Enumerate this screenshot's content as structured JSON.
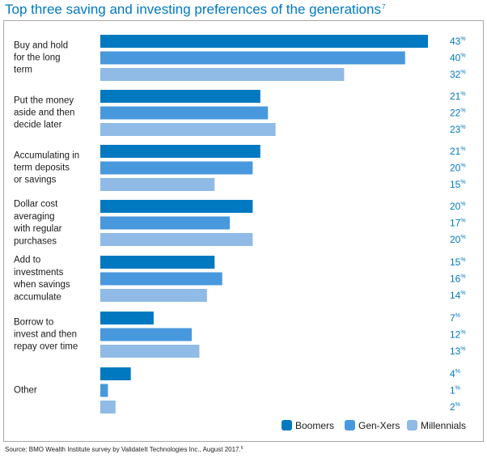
{
  "title": "Top three saving and investing preferences of the generations",
  "title_note": "7",
  "source": "Source: BMO Wealth Institute survey by ValidateIt Technologies Inc., August 2017.",
  "source_note": "6",
  "value_suffix": "%",
  "colors": {
    "Boomers": "#0079c1",
    "Gen-Xers": "#4898dd",
    "Millennials": "#8fbbe6"
  },
  "chart_data": {
    "type": "bar",
    "orientation": "horizontal",
    "categories": [
      [
        "Buy and hold",
        "for the long",
        "term"
      ],
      [
        "Put the money",
        "aside and then",
        "decide later"
      ],
      [
        "Accumulating in",
        "term deposits",
        "or savings"
      ],
      [
        "Dollar cost",
        "averaging",
        "with regular",
        "purchases"
      ],
      [
        "Add to",
        "investments",
        "when savings",
        "accumulate"
      ],
      [
        "Borrow to",
        "invest and then",
        "repay over time"
      ],
      [
        "Other"
      ]
    ],
    "series": [
      {
        "name": "Boomers",
        "values": [
          43,
          21,
          21,
          20,
          15,
          7,
          4
        ]
      },
      {
        "name": "Gen-Xers",
        "values": [
          40,
          22,
          20,
          17,
          16,
          12,
          1
        ]
      },
      {
        "name": "Millennials",
        "values": [
          32,
          23,
          15,
          20,
          14,
          13,
          2
        ]
      }
    ],
    "xlim": [
      0,
      43
    ],
    "grid": false,
    "legend_position": "bottom-right"
  }
}
